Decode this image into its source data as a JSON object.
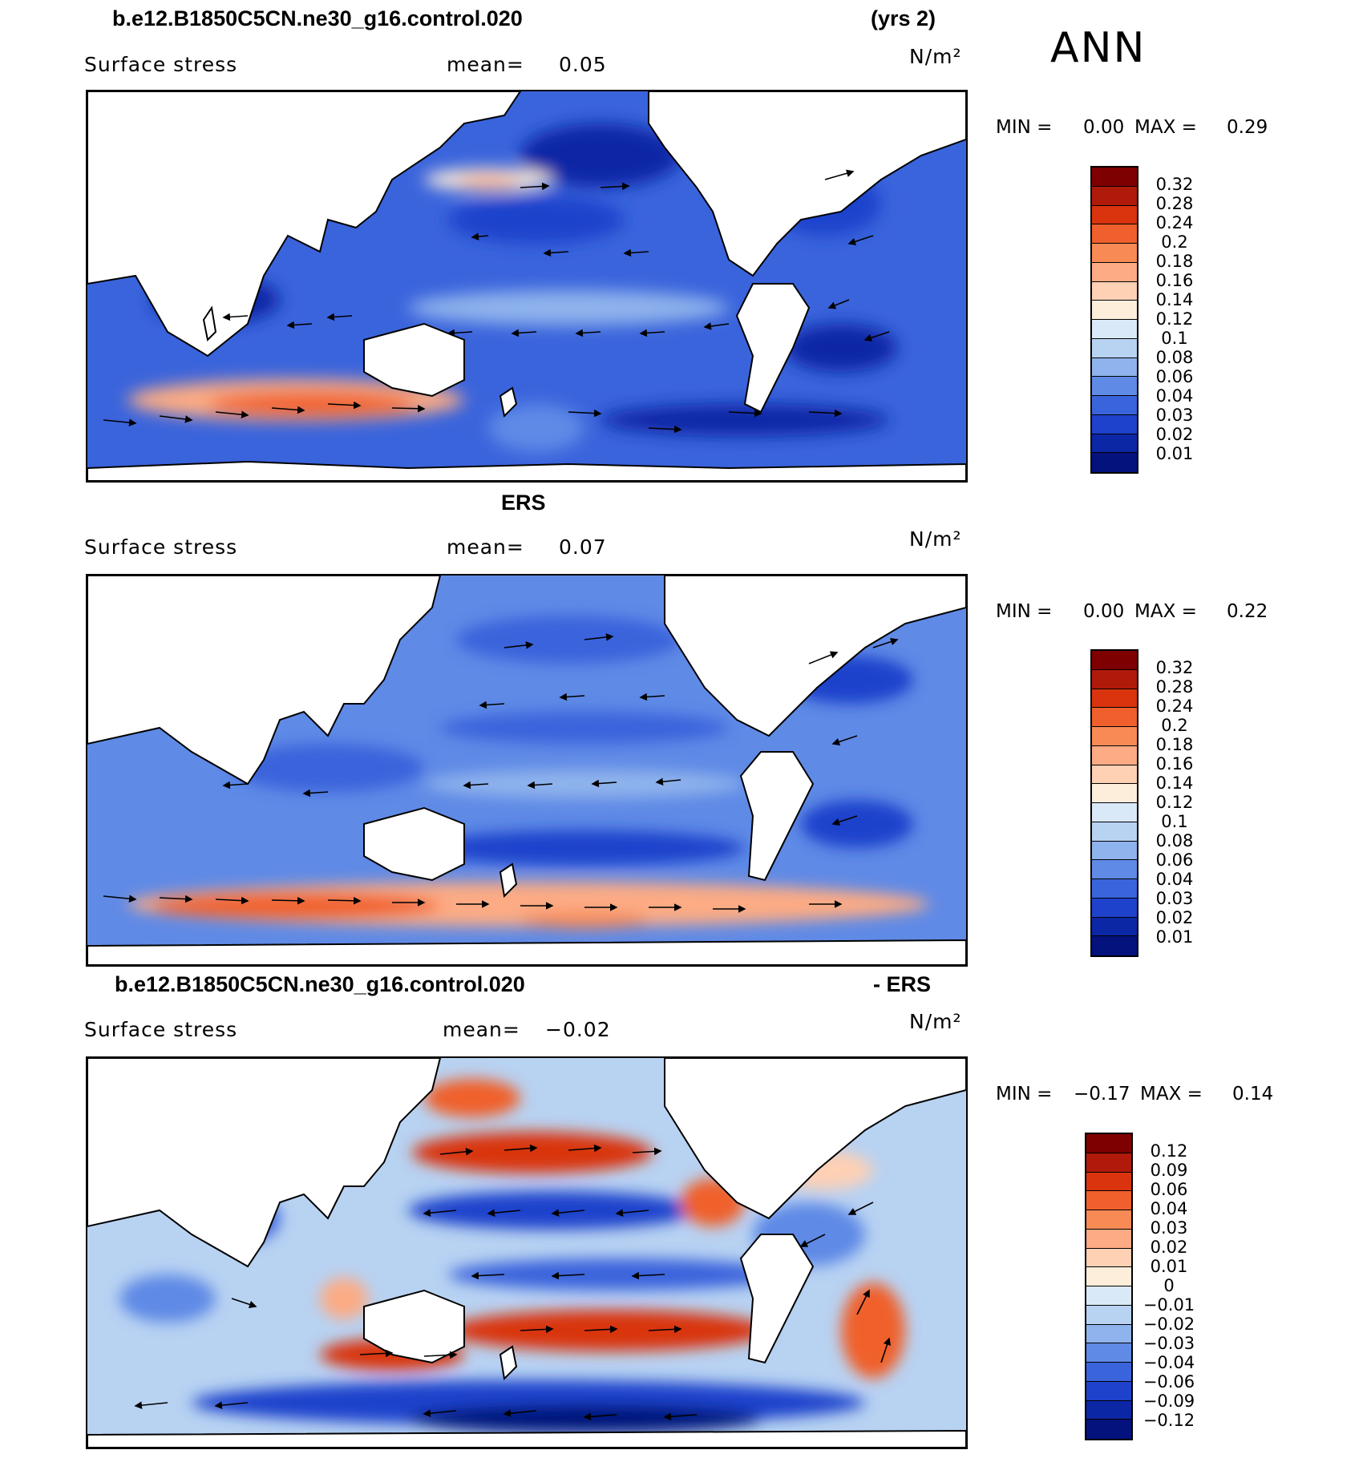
{
  "figure": {
    "season": "ANN",
    "panels": [
      {
        "id": "model",
        "title_left": "b.e12.B1850C5CN.ne30_g16.control.020",
        "title_right": "(yrs 2)",
        "variable": "Surface stress",
        "mean_label": "mean=",
        "mean_value": "0.05",
        "units": "N/m²",
        "min_label": "MIN =",
        "min_value": "0.00",
        "max_label": "MAX =",
        "max_value": "0.29",
        "colorbar": {
          "labels": [
            "0.32",
            "0.28",
            "0.24",
            "0.2",
            "0.18",
            "0.16",
            "0.14",
            "0.12",
            "0.1",
            "0.08",
            "0.06",
            "0.04",
            "0.03",
            "0.02",
            "0.01"
          ],
          "colors": [
            "#7f0000",
            "#b01a0a",
            "#d9340e",
            "#f0602c",
            "#f88a56",
            "#fcab84",
            "#fed0b4",
            "#fdeedc",
            "#d9e9f8",
            "#b8d2f2",
            "#8fb3ec",
            "#5f8ae6",
            "#3a64dc",
            "#1e42cc",
            "#0c27a6",
            "#03127c"
          ]
        }
      },
      {
        "id": "obs",
        "title_center": "ERS",
        "variable": "Surface stress",
        "mean_label": "mean=",
        "mean_value": "0.07",
        "units": "N/m²",
        "min_label": "MIN =",
        "min_value": "0.00",
        "max_label": "MAX =",
        "max_value": "0.22",
        "colorbar": {
          "labels": [
            "0.32",
            "0.28",
            "0.24",
            "0.2",
            "0.18",
            "0.16",
            "0.14",
            "0.12",
            "0.1",
            "0.08",
            "0.06",
            "0.04",
            "0.03",
            "0.02",
            "0.01"
          ],
          "colors": [
            "#7f0000",
            "#b01a0a",
            "#d9340e",
            "#f0602c",
            "#f88a56",
            "#fcab84",
            "#fed0b4",
            "#fdeedc",
            "#d9e9f8",
            "#b8d2f2",
            "#8fb3ec",
            "#5f8ae6",
            "#3a64dc",
            "#1e42cc",
            "#0c27a6",
            "#03127c"
          ]
        }
      },
      {
        "id": "diff",
        "title_left": "b.e12.B1850C5CN.ne30_g16.control.020",
        "title_right": "- ERS",
        "variable": "Surface stress",
        "mean_label": "mean=",
        "mean_value": "−0.02",
        "units": "N/m²",
        "min_label": "MIN =",
        "min_value": "−0.17",
        "max_label": "MAX =",
        "max_value": "0.14",
        "colorbar": {
          "labels": [
            "0.12",
            "0.09",
            "0.06",
            "0.04",
            "0.03",
            "0.02",
            "0.01",
            "0",
            "−0.01",
            "−0.02",
            "−0.03",
            "−0.04",
            "−0.06",
            "−0.09",
            "−0.12"
          ],
          "colors": [
            "#7f0000",
            "#b01a0a",
            "#d9340e",
            "#f0602c",
            "#f88a56",
            "#fcab84",
            "#fed0b4",
            "#fdeedc",
            "#d9e9f8",
            "#b8d2f2",
            "#8fb3ec",
            "#5f8ae6",
            "#3a64dc",
            "#1e42cc",
            "#0c27a6",
            "#03127c"
          ]
        }
      }
    ]
  }
}
